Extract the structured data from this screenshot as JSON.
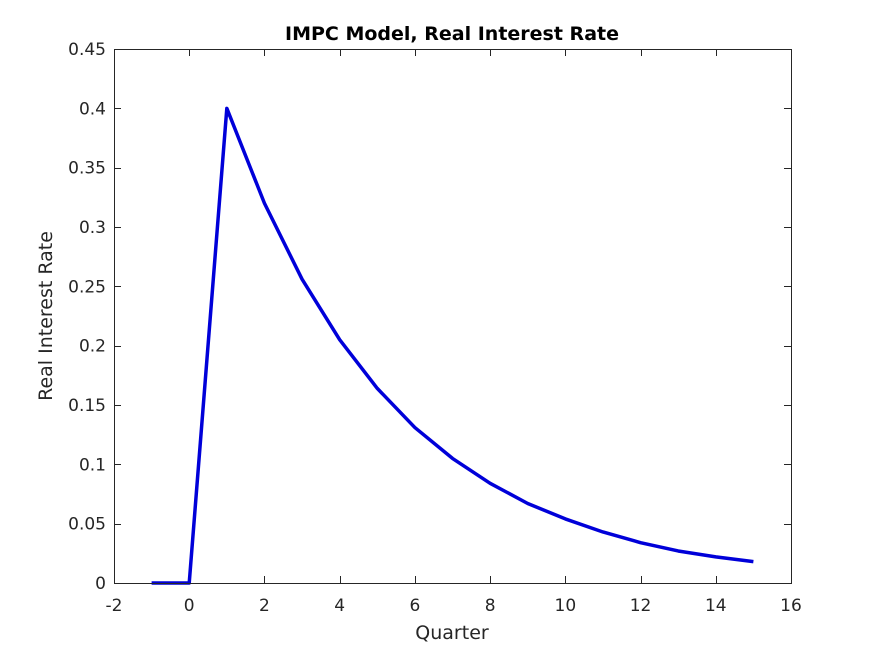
{
  "chart_data": {
    "type": "line",
    "title": "IMPC Model, Real Interest Rate",
    "xlabel": "Quarter",
    "ylabel": "Real Interest Rate",
    "xlim": [
      -2,
      16
    ],
    "ylim": [
      0,
      0.45
    ],
    "xticks": [
      -2,
      0,
      2,
      4,
      6,
      8,
      10,
      12,
      14,
      16
    ],
    "yticks": [
      0,
      0.05,
      0.1,
      0.15,
      0.2,
      0.25,
      0.3,
      0.35,
      0.4,
      0.45
    ],
    "xtick_labels": [
      "-2",
      "0",
      "2",
      "4",
      "6",
      "8",
      "10",
      "12",
      "14",
      "16"
    ],
    "ytick_labels": [
      "0",
      "0.05",
      "0.1",
      "0.15",
      "0.2",
      "0.25",
      "0.3",
      "0.35",
      "0.4",
      "0.45"
    ],
    "grid": false,
    "series": [
      {
        "color": "#0000d9",
        "x": [
          -1,
          0,
          1,
          2,
          3,
          4,
          5,
          6,
          7,
          8,
          9,
          10,
          11,
          12,
          13,
          14,
          15
        ],
        "y": [
          0,
          0,
          0.4,
          0.32,
          0.256,
          0.205,
          0.164,
          0.131,
          0.105,
          0.084,
          0.067,
          0.054,
          0.043,
          0.034,
          0.027,
          0.022,
          0.018
        ]
      }
    ]
  }
}
